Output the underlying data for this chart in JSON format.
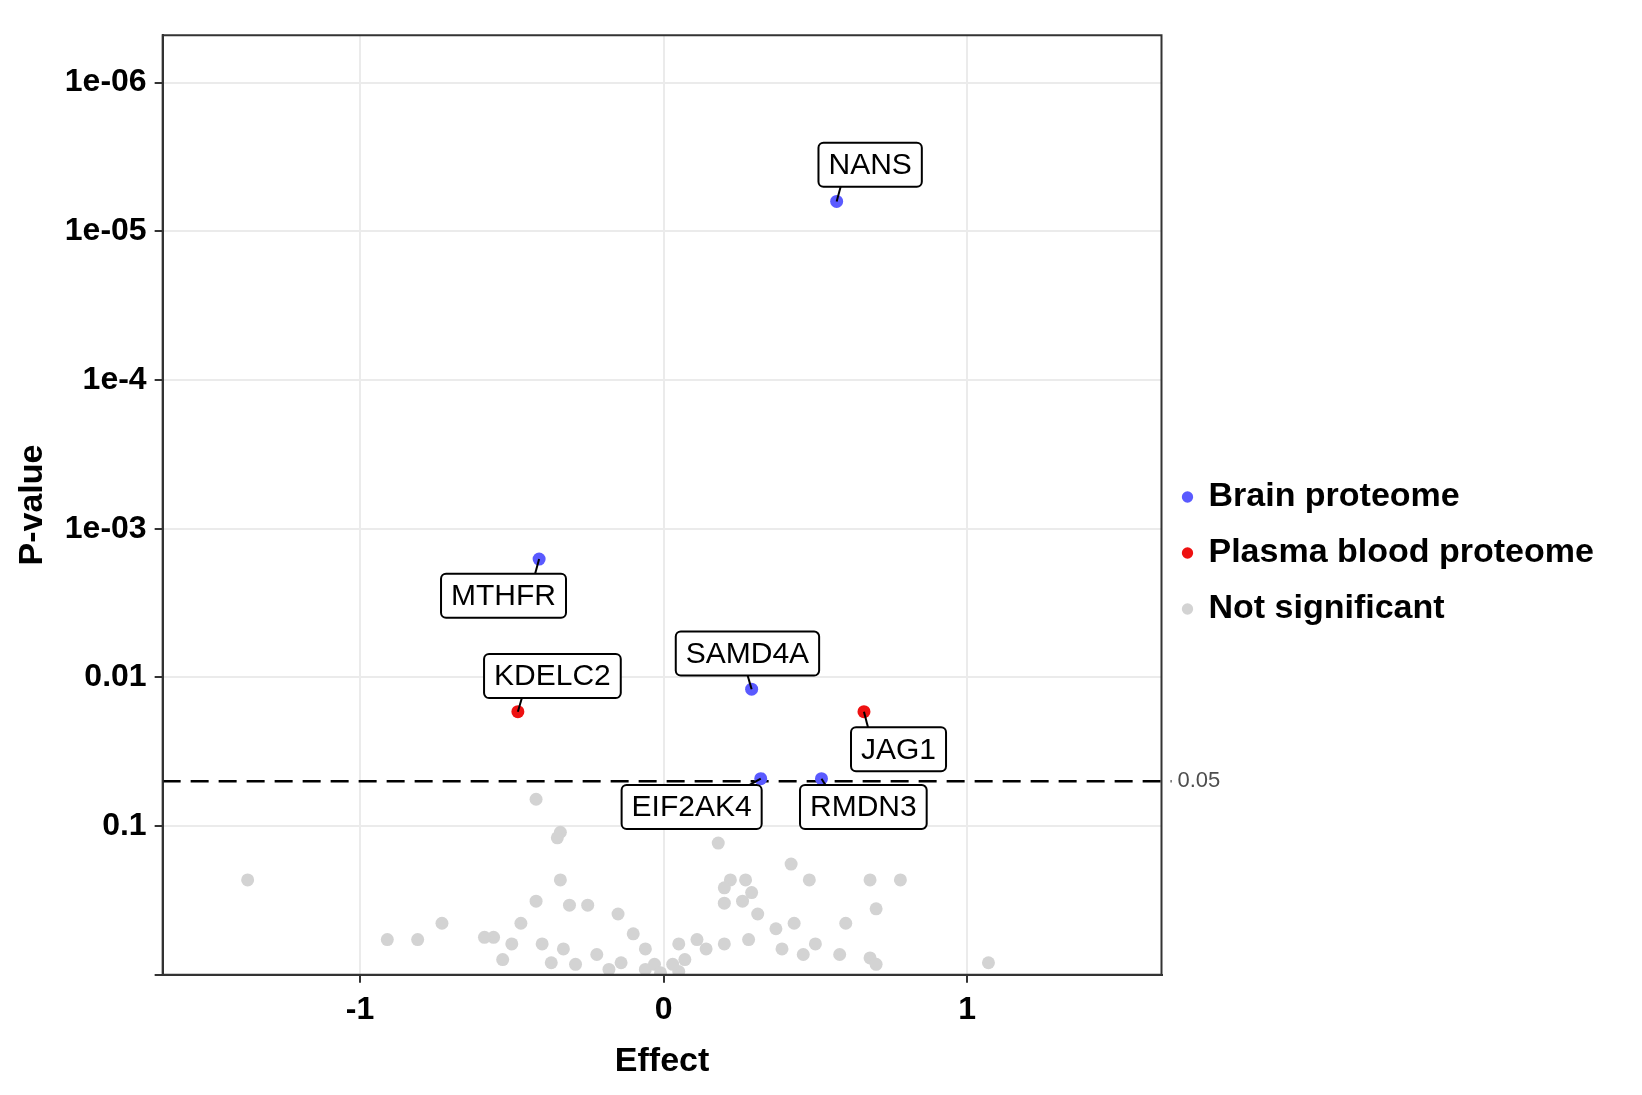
{
  "chart_data": {
    "type": "scatter",
    "xlabel": "Effect",
    "ylabel": "P-value",
    "xlim": [
      -1.65,
      1.64
    ],
    "xticks": [
      -1,
      0,
      1
    ],
    "ylim": [
      1,
      4.8e-07
    ],
    "yticks": [
      {
        "value": 1e-06,
        "label": "1e-06"
      },
      {
        "value": 1e-05,
        "label": "1e-05"
      },
      {
        "value": 0.0001,
        "label": "1e-4"
      },
      {
        "value": 0.001,
        "label": "1e-03"
      },
      0.01,
      0.1,
      {
        "value": 1,
        "label": null
      }
    ],
    "log": "y",
    "grid": true,
    "legend": "right",
    "marker": "circle",
    "series": [
      {
        "name": "Brain proteome",
        "color": "#5a5aff",
        "x": [
          0.57,
          -0.41,
          0.29,
          0.32,
          0.52
        ],
        "values": [
          6.3e-06,
          0.0016,
          0.012,
          0.048,
          0.048
        ]
      },
      {
        "name": "Plasma blood proteome",
        "color": "#ee1111",
        "x": [
          -0.48,
          0.66
        ],
        "values": [
          0.017,
          0.017
        ]
      },
      {
        "name": "Not significant",
        "color": "#d3d3d3",
        "x": [
          -0.42,
          -0.34,
          -0.35,
          -1.37,
          -0.34,
          0.22,
          0.42,
          0.18,
          0.27,
          0.68,
          0.78,
          0.48,
          0.7,
          -0.91,
          -0.81,
          -0.73,
          -0.56,
          -0.53,
          -0.47,
          -0.42,
          -0.31,
          -0.25,
          -0.15,
          -0.1,
          -0.06,
          -0.03,
          0.05,
          0.07,
          0.14,
          0.2,
          0.26,
          0.31,
          0.37,
          0.43,
          0.5,
          0.58,
          0.6,
          0.68,
          0.7,
          1.07,
          0.2,
          0.29,
          -0.4,
          -0.33,
          -0.22,
          -0.14,
          0.05,
          0.11,
          0.2,
          0.28,
          0.39,
          0.46,
          -0.59,
          -0.5,
          -0.37,
          -0.29,
          -0.18,
          -0.06,
          -0.01,
          0.03
        ],
        "values": [
          0.066,
          0.11,
          0.12,
          0.23,
          0.23,
          0.23,
          0.18,
          0.13,
          0.23,
          0.23,
          0.23,
          0.23,
          0.36,
          0.58,
          0.58,
          0.45,
          0.56,
          0.79,
          0.45,
          0.32,
          0.34,
          0.34,
          0.39,
          0.53,
          0.67,
          0.85,
          0.95,
          0.79,
          0.67,
          0.33,
          0.32,
          0.39,
          0.49,
          0.45,
          0.62,
          0.73,
          0.45,
          0.77,
          0.85,
          0.83,
          0.26,
          0.28,
          0.62,
          0.67,
          0.73,
          0.83,
          0.62,
          0.58,
          0.62,
          0.58,
          0.67,
          0.73,
          0.56,
          0.62,
          0.83,
          0.85,
          0.92,
          0.92,
          0.97,
          0.85
        ]
      }
    ],
    "ref_lines": [
      {
        "axis": "y",
        "value": 0.05,
        "label": "0.05",
        "line_style": "dashed"
      }
    ],
    "annotations": [
      {
        "text": "NANS",
        "x": 0.57,
        "y": 6.3e-06
      },
      {
        "text": "MTHFR",
        "x": -0.41,
        "y": 0.0016
      },
      {
        "text": "SAMD4A",
        "x": 0.29,
        "y": 0.012
      },
      {
        "text": "KDELC2",
        "x": -0.48,
        "y": 0.017
      },
      {
        "text": "JAG1",
        "x": 0.66,
        "y": 0.017
      },
      {
        "text": "EIF2AK4",
        "x": 0.32,
        "y": 0.048
      },
      {
        "text": "RMDN3",
        "x": 0.52,
        "y": 0.048
      }
    ]
  }
}
